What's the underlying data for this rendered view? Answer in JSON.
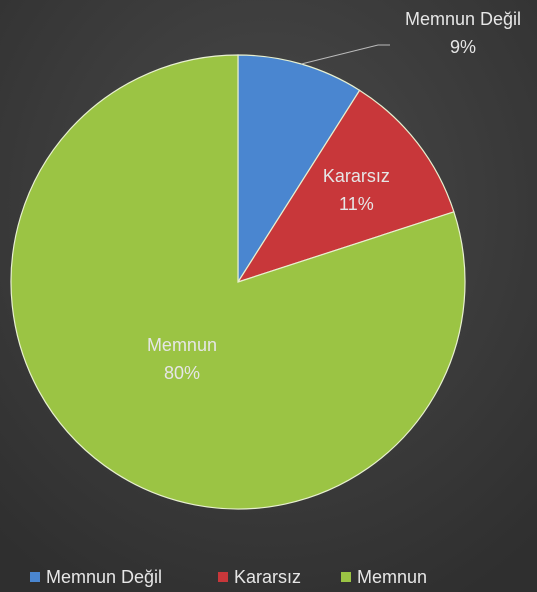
{
  "chart_data": {
    "type": "pie",
    "categories": [
      "Memnun Değil",
      "Kararsız",
      "Memnun"
    ],
    "values": [
      9,
      11,
      80
    ],
    "value_labels": [
      "9%",
      "11%",
      "80%"
    ],
    "colors": [
      "#4a86d0",
      "#c8373a",
      "#9bc444"
    ],
    "legend": "bottom"
  }
}
